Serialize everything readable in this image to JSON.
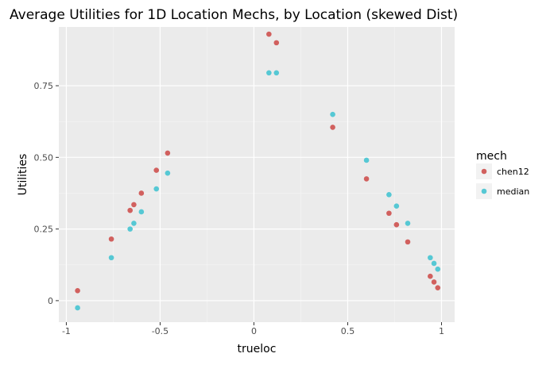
{
  "chart_data": {
    "type": "scatter",
    "title": "Average Utilities for 1D Location Mechs, by Location (skewed Dist)",
    "xlabel": "trueloc",
    "ylabel": "Utilities",
    "xlim": [
      -1.04,
      1.07
    ],
    "ylim": [
      -0.075,
      0.955
    ],
    "x_ticks": [
      -1,
      -0.5,
      0,
      0.5,
      1
    ],
    "x_tick_labels": [
      "-1",
      "-0.5",
      "0",
      "0.5",
      "1"
    ],
    "y_ticks": [
      0,
      0.25,
      0.5,
      0.75
    ],
    "y_tick_labels": [
      "0",
      "0.25",
      "0.50",
      "0.75"
    ],
    "grid": true,
    "legend": {
      "title": "mech",
      "placement": "right"
    },
    "series": [
      {
        "name": "chen12",
        "color": "#d1605e",
        "x": [
          -0.94,
          -0.76,
          -0.66,
          -0.64,
          -0.6,
          -0.52,
          -0.46,
          0.08,
          0.12,
          0.42,
          0.6,
          0.72,
          0.76,
          0.82,
          0.94,
          0.96,
          0.98
        ],
        "y": [
          0.035,
          0.215,
          0.315,
          0.335,
          0.375,
          0.455,
          0.515,
          0.93,
          0.9,
          0.605,
          0.425,
          0.305,
          0.265,
          0.205,
          0.085,
          0.065,
          0.045
        ]
      },
      {
        "name": "median",
        "color": "#56c8d4",
        "x": [
          -0.94,
          -0.76,
          -0.66,
          -0.64,
          -0.6,
          -0.52,
          -0.46,
          0.08,
          0.12,
          0.42,
          0.6,
          0.72,
          0.76,
          0.82,
          0.94,
          0.96,
          0.98
        ],
        "y": [
          -0.025,
          0.15,
          0.25,
          0.27,
          0.31,
          0.39,
          0.445,
          0.795,
          0.795,
          0.65,
          0.49,
          0.37,
          0.33,
          0.27,
          0.15,
          0.13,
          0.11
        ]
      }
    ]
  }
}
